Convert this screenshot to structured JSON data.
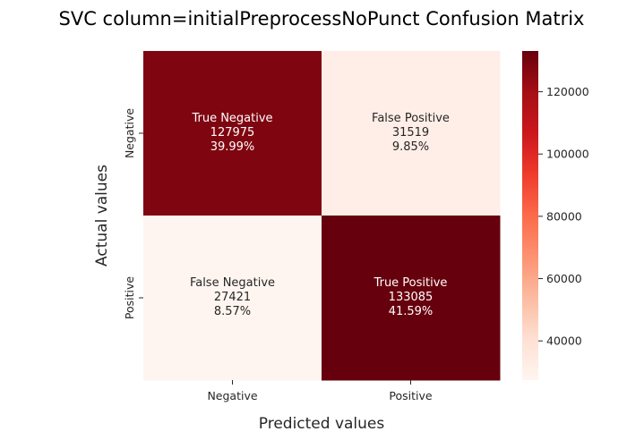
{
  "chart_data": {
    "type": "heatmap",
    "title": "SVC column=initialPreprocessNoPunct Confusion Matrix",
    "xlabel": "Predicted values",
    "ylabel": "Actual values",
    "x_categories": [
      "Negative",
      "Positive"
    ],
    "y_categories": [
      "Negative",
      "Positive"
    ],
    "cells": [
      [
        {
          "name": "True Negative",
          "value": 127975,
          "percent": "39.99%"
        },
        {
          "name": "False Positive",
          "value": 31519,
          "percent": "9.85%"
        }
      ],
      [
        {
          "name": "False Negative",
          "value": 27421,
          "percent": "8.57%"
        },
        {
          "name": "True Positive",
          "value": 133085,
          "percent": "41.59%"
        }
      ]
    ],
    "colormap": "Reds",
    "color_range": [
      27421,
      133085
    ],
    "colorbar_ticks": [
      40000,
      60000,
      80000,
      100000,
      120000
    ],
    "grid": false
  }
}
